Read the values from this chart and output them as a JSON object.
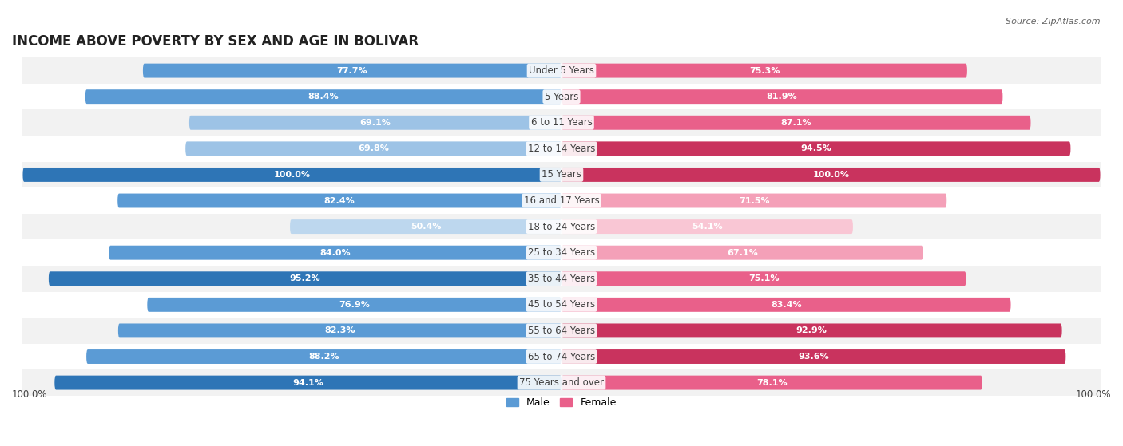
{
  "title": "INCOME ABOVE POVERTY BY SEX AND AGE IN BOLIVAR",
  "source": "Source: ZipAtlas.com",
  "categories": [
    "Under 5 Years",
    "5 Years",
    "6 to 11 Years",
    "12 to 14 Years",
    "15 Years",
    "16 and 17 Years",
    "18 to 24 Years",
    "25 to 34 Years",
    "35 to 44 Years",
    "45 to 54 Years",
    "55 to 64 Years",
    "65 to 74 Years",
    "75 Years and over"
  ],
  "male_values": [
    77.7,
    88.4,
    69.1,
    69.8,
    100.0,
    82.4,
    50.4,
    84.0,
    95.2,
    76.9,
    82.3,
    88.2,
    94.1
  ],
  "female_values": [
    75.3,
    81.9,
    87.1,
    94.5,
    100.0,
    71.5,
    54.1,
    67.1,
    75.1,
    83.4,
    92.9,
    93.6,
    78.1
  ],
  "male_color_high": "#5b9bd5",
  "male_color_low": "#bdd7ee",
  "female_color_high": "#e9608a",
  "female_color_low": "#f9c6d4",
  "background_color": "#ffffff",
  "row_color_odd": "#f2f2f2",
  "row_color_even": "#ffffff",
  "title_fontsize": 12,
  "label_fontsize": 8.5,
  "value_fontsize": 8,
  "legend_fontsize": 9,
  "source_fontsize": 8,
  "max_value": 100.0,
  "footer_value": "100.0%"
}
